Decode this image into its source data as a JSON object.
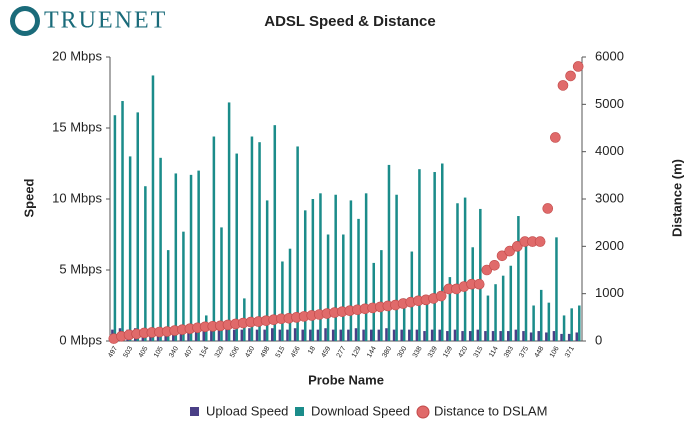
{
  "logo": "TRUENET",
  "chart_data": {
    "type": "bar",
    "title": "ADSL Speed & Distance",
    "x_label": "Probe Name",
    "y_label": "Speed",
    "y2_label": "Distance (m)",
    "categories": [
      "497",
      null,
      "503",
      null,
      "405",
      null,
      "105",
      null,
      "340",
      null,
      "407",
      null,
      "154",
      null,
      "329",
      null,
      "506",
      null,
      "430",
      null,
      "498",
      null,
      "515",
      null,
      "456",
      null,
      "18",
      null,
      "459",
      null,
      "277",
      null,
      "129",
      null,
      "144",
      null,
      "380",
      null,
      "300",
      null,
      "338",
      null,
      "339",
      null,
      "159",
      null,
      "420",
      null,
      "315",
      null,
      "114",
      null,
      "393",
      null,
      "375",
      null,
      "448",
      null,
      "106",
      null,
      "371",
      null
    ],
    "series": [
      {
        "name": "Upload Speed",
        "color": "#4a3f86",
        "values": [
          0.8,
          0.9,
          0.8,
          0.9,
          0.8,
          0.9,
          0.8,
          0.8,
          0.9,
          0.8,
          0.9,
          0.8,
          0.9,
          0.8,
          0.8,
          0.9,
          0.8,
          0.8,
          0.9,
          0.8,
          0.8,
          0.9,
          0.8,
          0.8,
          0.9,
          0.8,
          0.8,
          0.8,
          0.9,
          0.8,
          0.8,
          0.8,
          0.9,
          0.8,
          0.8,
          0.8,
          0.9,
          0.8,
          0.8,
          0.8,
          0.8,
          0.7,
          0.8,
          0.8,
          0.7,
          0.8,
          0.7,
          0.7,
          0.8,
          0.7,
          0.7,
          0.7,
          0.7,
          0.8,
          0.7,
          0.6,
          0.7,
          0.6,
          0.7,
          0.5,
          0.5,
          0.6
        ]
      },
      {
        "name": "Download Speed",
        "color": "#1b8c8a",
        "values": [
          15.9,
          16.9,
          13.0,
          16.1,
          10.9,
          18.7,
          12.9,
          6.4,
          11.8,
          7.7,
          11.7,
          12.0,
          1.8,
          14.4,
          8.0,
          16.8,
          13.2,
          3.0,
          14.4,
          14.0,
          9.9,
          15.2,
          5.6,
          6.5,
          13.7,
          9.2,
          10.0,
          10.4,
          7.5,
          10.3,
          7.5,
          9.9,
          8.6,
          10.4,
          5.5,
          6.4,
          12.4,
          10.3,
          3.0,
          6.3,
          12.1,
          3.2,
          11.9,
          12.5,
          4.5,
          9.7,
          10.1,
          6.6,
          9.3,
          3.2,
          4.0,
          4.6,
          5.3,
          8.8,
          6.7,
          2.5,
          3.6,
          2.7,
          7.3,
          1.8,
          2.3,
          2.5
        ]
      },
      {
        "name": "Distance to DSLAM",
        "color": "#e06a6a",
        "axis": "y2",
        "type": "scatter",
        "values": [
          50,
          100,
          130,
          150,
          170,
          180,
          190,
          200,
          220,
          240,
          260,
          280,
          300,
          310,
          320,
          340,
          360,
          380,
          400,
          410,
          430,
          450,
          470,
          480,
          500,
          520,
          540,
          560,
          580,
          600,
          620,
          640,
          660,
          680,
          700,
          720,
          740,
          760,
          790,
          820,
          850,
          870,
          900,
          950,
          1100,
          1100,
          1150,
          1200,
          1200,
          1500,
          1600,
          1800,
          1900,
          2000,
          2100,
          2100,
          2100,
          2800,
          4300,
          5400,
          5600,
          5800
        ]
      }
    ],
    "ylim": [
      0,
      20
    ],
    "yticks": [
      {
        "value": 0,
        "label": "0 Mbps"
      },
      {
        "value": 5,
        "label": "5 Mbps"
      },
      {
        "value": 10,
        "label": "10 Mbps"
      },
      {
        "value": 15,
        "label": "15 Mbps"
      },
      {
        "value": 20,
        "label": "20 Mbps"
      }
    ],
    "y2lim": [
      0,
      6000
    ],
    "y2ticks": [
      0,
      1000,
      2000,
      3000,
      4000,
      5000,
      6000
    ],
    "legend": "bottom",
    "grid": false
  }
}
